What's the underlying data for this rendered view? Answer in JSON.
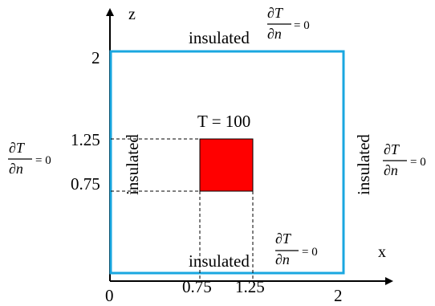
{
  "axes": {
    "z_label": "z",
    "x_label": "x"
  },
  "ticks": {
    "origin": "0",
    "z_max": "2",
    "x_max": "2",
    "z_lo": "0.75",
    "z_hi": "1.25",
    "x_lo": "0.75",
    "x_hi": "1.25"
  },
  "source": {
    "label": "T = 100",
    "color": "#ff0000"
  },
  "boundaries": {
    "top": {
      "label": "insulated",
      "flux_num": "∂T",
      "flux_den": "∂n",
      "flux_eq": "= 0"
    },
    "bottom": {
      "label": "insulated",
      "flux_num": "∂T",
      "flux_den": "∂n",
      "flux_eq": "= 0"
    },
    "left": {
      "label": "insulated",
      "flux_num": "∂T",
      "flux_den": "∂n",
      "flux_eq": "= 0"
    },
    "right": {
      "label": "insulated",
      "flux_num": "∂T",
      "flux_den": "∂n",
      "flux_eq": "= 0"
    }
  },
  "colors": {
    "domain_border": "#1aa7e0",
    "axis": "#000000",
    "guide": "#000000"
  }
}
